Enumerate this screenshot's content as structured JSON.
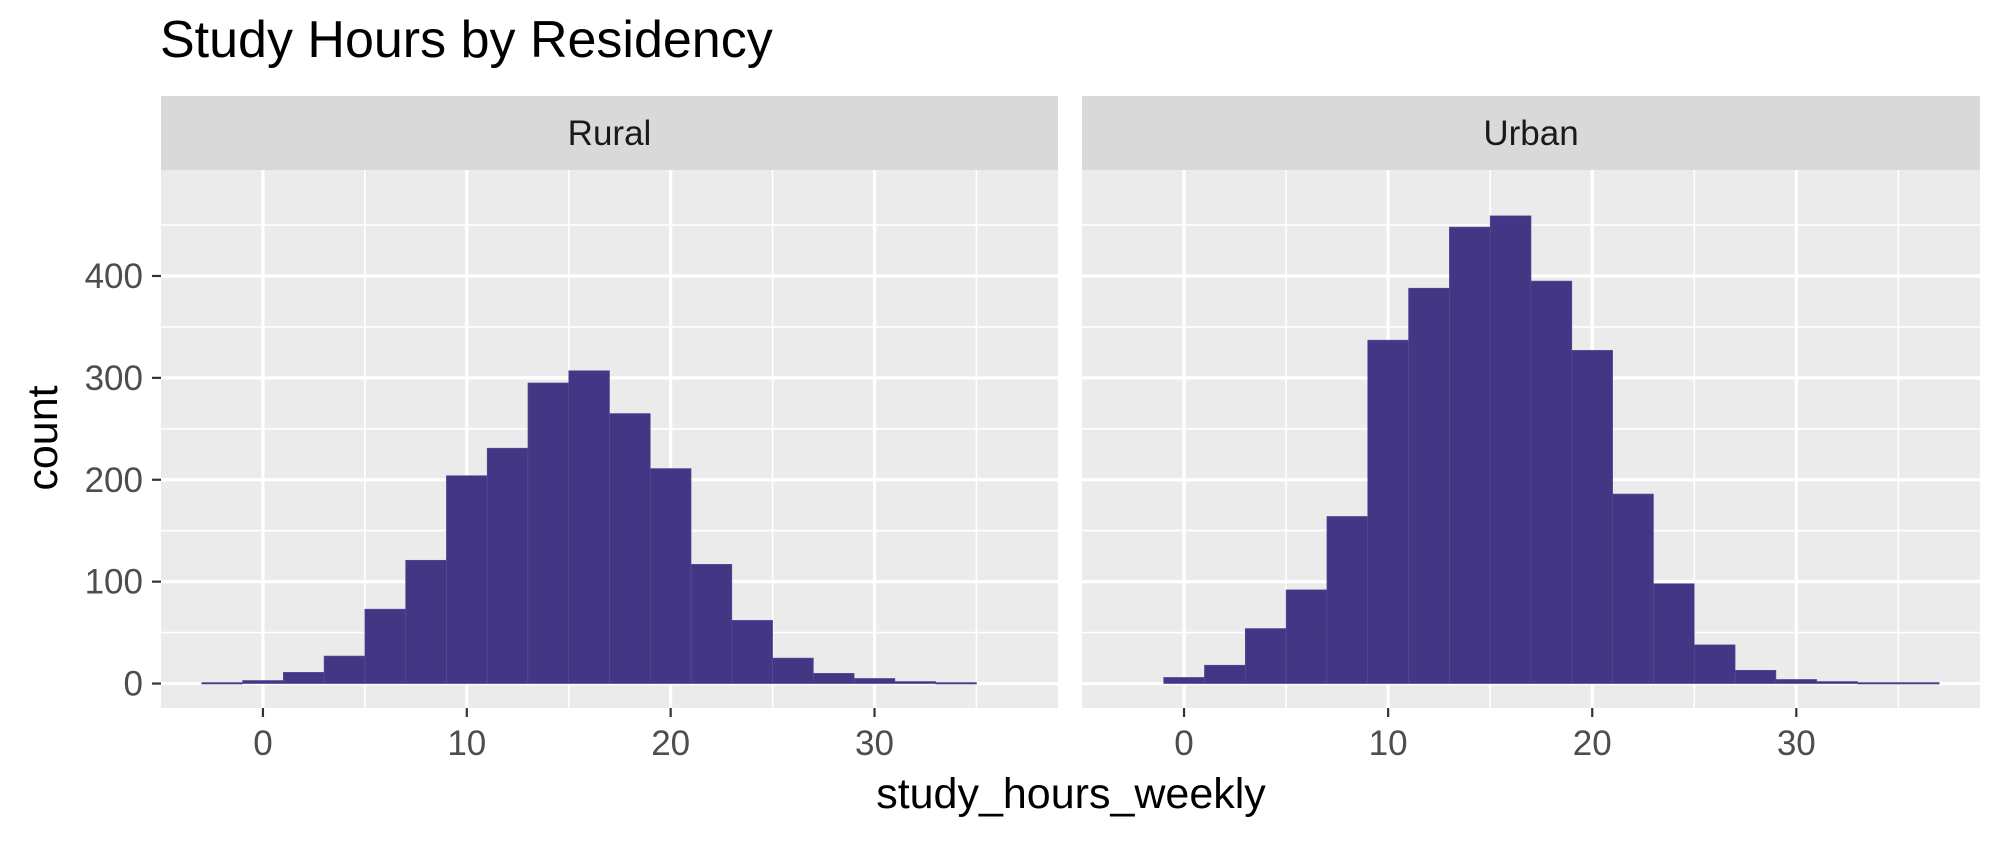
{
  "chart_data": {
    "type": "bar",
    "title": "Study Hours by Residency",
    "xlabel": "study_hours_weekly",
    "ylabel": "count",
    "xlim": [
      -5,
      39
    ],
    "ylim": [
      -24,
      504
    ],
    "x_ticks": [
      0,
      10,
      20,
      30
    ],
    "y_ticks": [
      0,
      100,
      200,
      300,
      400
    ],
    "grid": true,
    "bin_width": 2,
    "bar_color": "#433684",
    "panel_background": "#ebebeb",
    "strip_background": "#d9d9d9",
    "grid_color": "#ffffff",
    "panels": [
      {
        "label": "Rural",
        "bins": [
          {
            "x": -2,
            "count": 1
          },
          {
            "x": 0,
            "count": 3
          },
          {
            "x": 2,
            "count": 11
          },
          {
            "x": 4,
            "count": 27
          },
          {
            "x": 6,
            "count": 73
          },
          {
            "x": 8,
            "count": 121
          },
          {
            "x": 10,
            "count": 204
          },
          {
            "x": 12,
            "count": 231
          },
          {
            "x": 14,
            "count": 295
          },
          {
            "x": 16,
            "count": 307
          },
          {
            "x": 18,
            "count": 265
          },
          {
            "x": 20,
            "count": 211
          },
          {
            "x": 22,
            "count": 117
          },
          {
            "x": 24,
            "count": 62
          },
          {
            "x": 26,
            "count": 25
          },
          {
            "x": 28,
            "count": 10
          },
          {
            "x": 30,
            "count": 5
          },
          {
            "x": 32,
            "count": 2
          },
          {
            "x": 34,
            "count": 1
          }
        ]
      },
      {
        "label": "Urban",
        "bins": [
          {
            "x": 0,
            "count": 6
          },
          {
            "x": 2,
            "count": 18
          },
          {
            "x": 4,
            "count": 54
          },
          {
            "x": 6,
            "count": 92
          },
          {
            "x": 8,
            "count": 164
          },
          {
            "x": 10,
            "count": 337
          },
          {
            "x": 12,
            "count": 388
          },
          {
            "x": 14,
            "count": 448
          },
          {
            "x": 16,
            "count": 459
          },
          {
            "x": 18,
            "count": 395
          },
          {
            "x": 20,
            "count": 327
          },
          {
            "x": 22,
            "count": 186
          },
          {
            "x": 24,
            "count": 98
          },
          {
            "x": 26,
            "count": 38
          },
          {
            "x": 28,
            "count": 13
          },
          {
            "x": 30,
            "count": 4
          },
          {
            "x": 32,
            "count": 2
          },
          {
            "x": 34,
            "count": 1
          },
          {
            "x": 36,
            "count": 1
          }
        ]
      }
    ]
  }
}
